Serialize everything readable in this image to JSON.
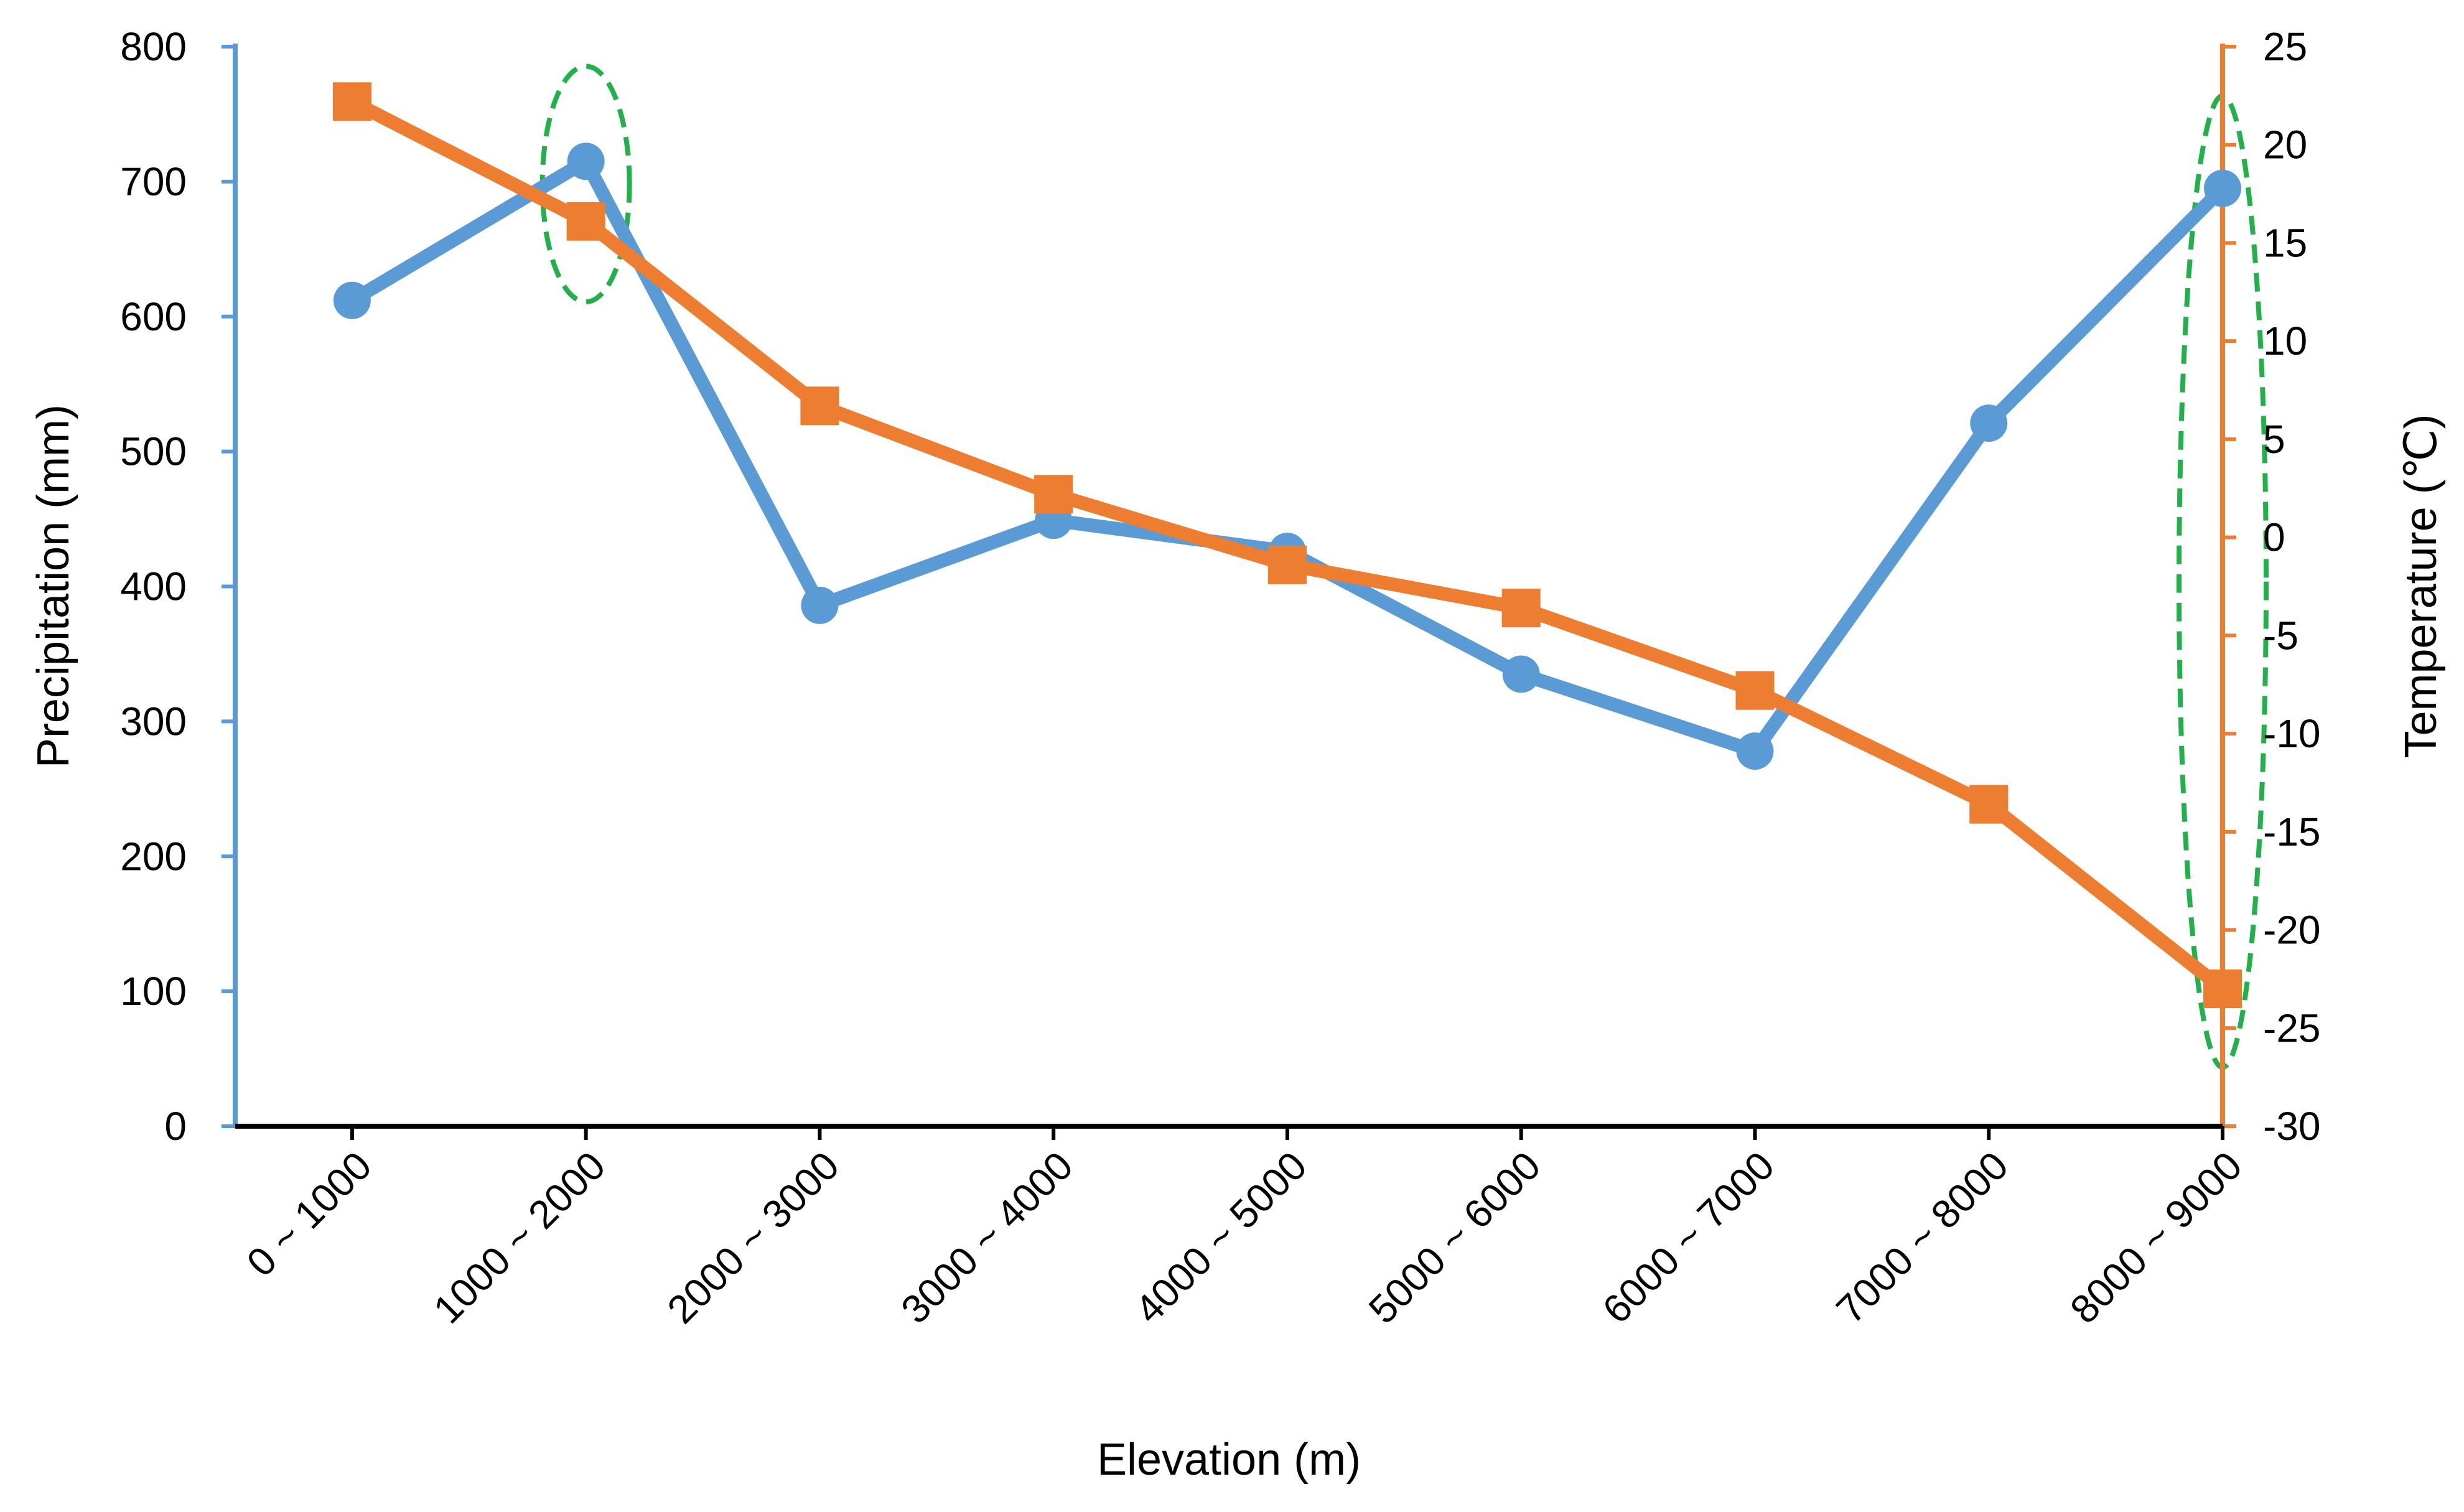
{
  "chart_data": {
    "type": "line",
    "title": "",
    "xlabel": "Elevation (m)",
    "ylabel": "Precipitation (mm)",
    "y2label": "Temperature (℃)",
    "categories": [
      "0 ~ 1000",
      "1000 ~ 2000",
      "2000 ~ 3000",
      "3000 ~ 4000",
      "4000 ~ 5000",
      "5000 ~ 6000",
      "6000 ~ 7000",
      "7000 ~ 8000",
      "8000 ~ 9000"
    ],
    "ylim": [
      0,
      800
    ],
    "yticks": [
      0,
      100,
      200,
      300,
      400,
      500,
      600,
      700,
      800
    ],
    "y2lim": [
      -30,
      25
    ],
    "y2ticks": [
      -30,
      -25,
      -20,
      -15,
      -10,
      -5,
      0,
      5,
      10,
      15,
      20,
      25
    ],
    "series": [
      {
        "name": "Precipitation",
        "axis": "left",
        "marker": "circle",
        "color": "#5B9BD5",
        "values": [
          612,
          715,
          386,
          449,
          426,
          335,
          278,
          521,
          695
        ]
      },
      {
        "name": "Temperature",
        "axis": "right",
        "marker": "square",
        "color": "#ED7D31",
        "values": [
          22.2,
          16.1,
          6.7,
          2.2,
          -1.4,
          -3.6,
          -7.8,
          -13.6,
          -23.0
        ]
      }
    ],
    "annotations": [
      {
        "type": "dashed-ellipse",
        "color": "#22B04B",
        "category": "1000 ~ 2000",
        "y_range": [
          12,
          24
        ],
        "axis": "right"
      },
      {
        "type": "dashed-ellipse",
        "color": "#22B04B",
        "category": "8000 ~ 9000",
        "y_range": [
          -27,
          22.5
        ],
        "axis": "right"
      }
    ],
    "grid": false,
    "legend": "none"
  },
  "colors": {
    "left_axis": "#5B9BD5",
    "right_axis": "#ED7D31",
    "x_axis": "#000000",
    "annotation": "#22B04B"
  }
}
